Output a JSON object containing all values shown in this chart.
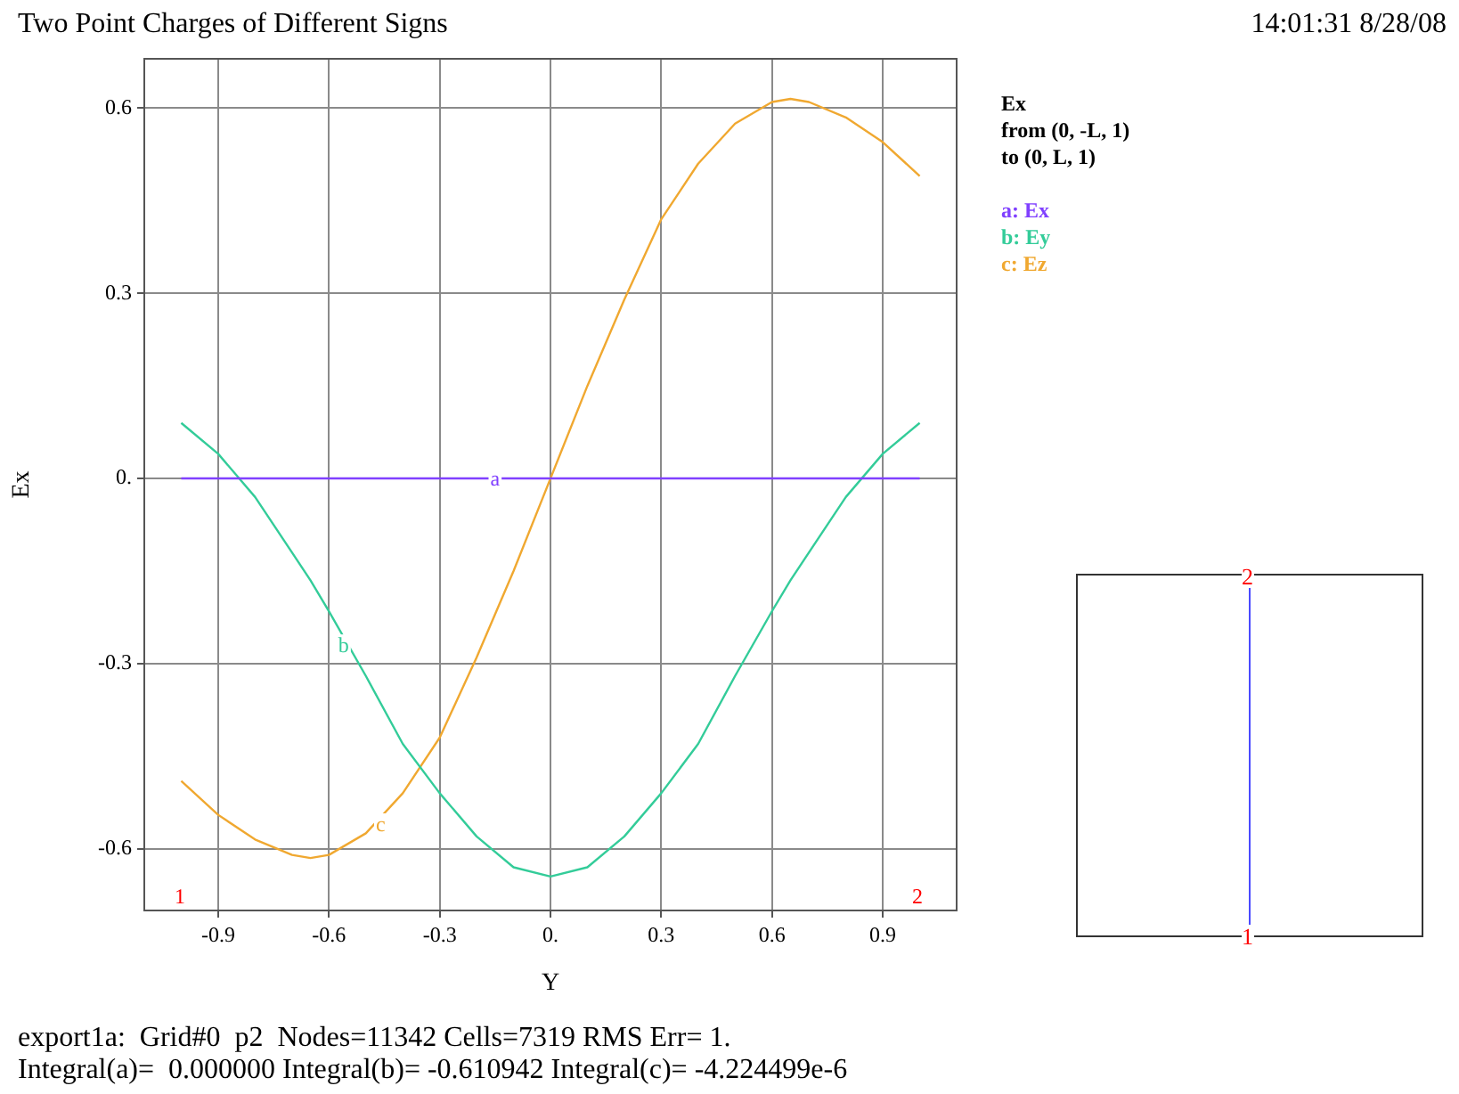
{
  "chart_data": {
    "type": "line",
    "title": "Two Point Charges of Different Signs",
    "xlabel": "Y",
    "ylabel": "Ex",
    "legend_title": "Ex",
    "x": [
      -1,
      -0.9,
      -0.8,
      -0.7,
      -0.65,
      -0.6,
      -0.5,
      -0.4,
      -0.3,
      -0.2,
      -0.1,
      0,
      0.1,
      0.2,
      0.3,
      0.4,
      0.5,
      0.6,
      0.65,
      0.7,
      0.8,
      0.9,
      1
    ],
    "series": [
      {
        "name": "a: Ex",
        "color": "#8040ff",
        "values": [
          0,
          0,
          0,
          0,
          0,
          0,
          0,
          0,
          0,
          0,
          0,
          0,
          0,
          0,
          0,
          0,
          0,
          0,
          0,
          0,
          0,
          0,
          0
        ]
      },
      {
        "name": "b: Ey",
        "color": "#33cc99",
        "values": [
          0.09,
          0.04,
          -0.03,
          -0.12,
          -0.165,
          -0.215,
          -0.32,
          -0.43,
          -0.51,
          -0.58,
          -0.63,
          -0.645,
          -0.63,
          -0.58,
          -0.51,
          -0.43,
          -0.32,
          -0.215,
          -0.165,
          -0.12,
          -0.03,
          0.04,
          0.09
        ]
      },
      {
        "name": "c: Ez",
        "color": "#f0a830",
        "values": [
          -0.49,
          -0.545,
          -0.585,
          -0.61,
          -0.615,
          -0.61,
          -0.575,
          -0.51,
          -0.42,
          -0.29,
          -0.15,
          0,
          0.15,
          0.29,
          0.42,
          0.51,
          0.575,
          0.61,
          0.615,
          0.61,
          0.585,
          0.545,
          0.49
        ]
      }
    ],
    "xlim": [
      -1.1,
      1.1
    ],
    "xticks": [
      -0.9,
      -0.6,
      -0.3,
      {
        "value": 0,
        "label": "0."
      },
      0.3,
      0.6,
      0.9
    ],
    "ylim": [
      -0.7,
      0.68
    ],
    "yticks": [
      -0.6,
      -0.3,
      {
        "value": 0,
        "label": "0."
      },
      0.3,
      0.6
    ],
    "grid": true,
    "legend": "right",
    "marker": "none",
    "line_style": "solid",
    "annotations": [
      {
        "text": "a",
        "x": -0.15,
        "y": 0
      },
      {
        "text": "b",
        "x": -0.56,
        "y": -0.27
      },
      {
        "text": "c",
        "x": -0.46,
        "y": -0.56
      },
      "from (0, -L, 1)",
      "to (0, L, 1)",
      "14:01:31 8/28/08",
      "export1a:  Grid#0  p2  Nodes=11342 Cells=7319 RMS Err= 1.",
      "Integral(a)=  0.000000 Integral(b)= -0.610942 Integral(c)= -4.224499e-6",
      "1",
      "2",
      "1",
      "2"
    ]
  }
}
